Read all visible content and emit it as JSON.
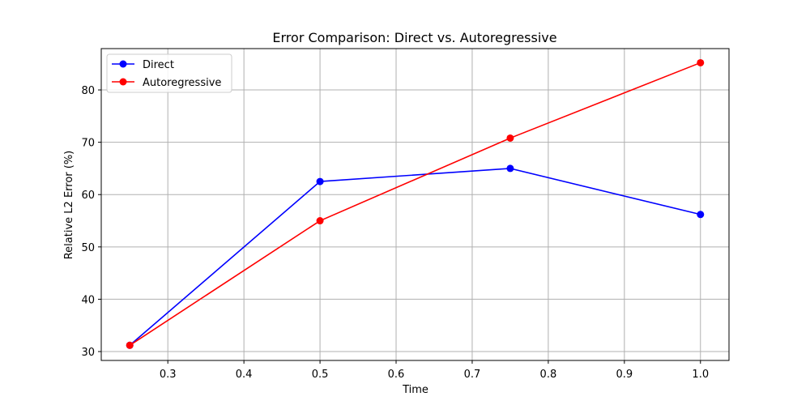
{
  "chart_data": {
    "type": "line",
    "title": "Error Comparison: Direct vs. Autoregressive",
    "xlabel": "Time",
    "ylabel": "Relative L2 Error (%)",
    "x": [
      0.25,
      0.5,
      0.75,
      1.0
    ],
    "xlim": [
      0.2125,
      1.0375
    ],
    "ylim": [
      28.3,
      87.9
    ],
    "xticks": [
      0.3,
      0.4,
      0.5,
      0.6,
      0.7,
      0.8,
      0.9,
      1.0
    ],
    "xtick_labels": [
      "0.3",
      "0.4",
      "0.5",
      "0.6",
      "0.7",
      "0.8",
      "0.9",
      "1.0"
    ],
    "yticks": [
      30,
      40,
      50,
      60,
      70,
      80
    ],
    "ytick_labels": [
      "30",
      "40",
      "50",
      "60",
      "70",
      "80"
    ],
    "grid": true,
    "legend_position": "top-left",
    "series": [
      {
        "name": "Direct",
        "values": [
          31.2,
          62.5,
          65.0,
          56.2
        ],
        "color": "#0000ff",
        "marker": "circle"
      },
      {
        "name": "Autoregressive",
        "values": [
          31.2,
          55.0,
          70.8,
          85.2
        ],
        "color": "#ff0000",
        "marker": "circle"
      }
    ]
  }
}
